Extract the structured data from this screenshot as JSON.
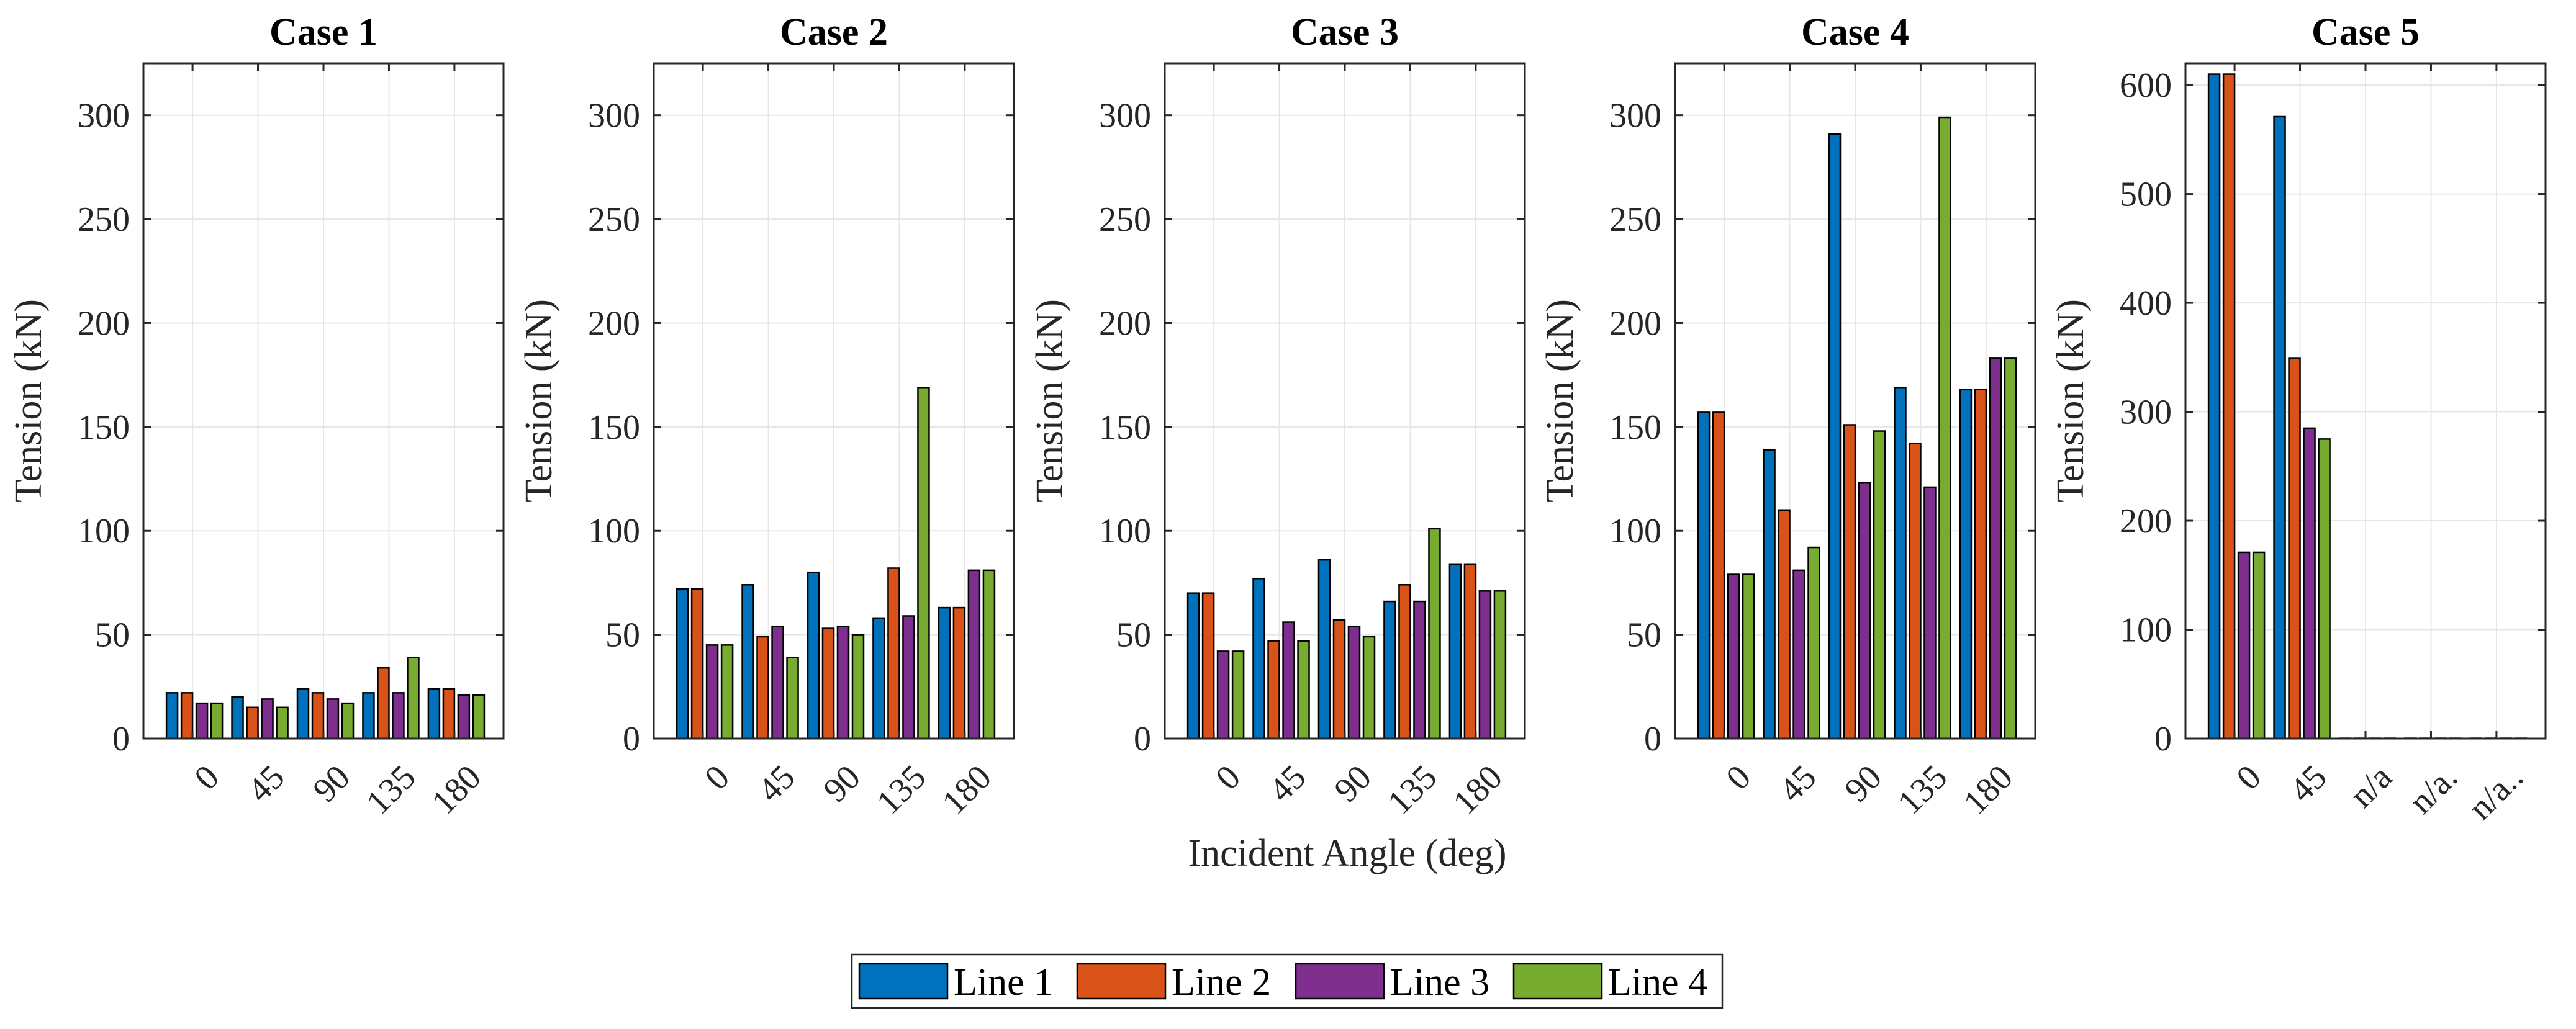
{
  "chart_data": {
    "type": "bar",
    "xlabel": "Incident Angle (deg)",
    "legend_location": "bottom-center",
    "series_names": [
      "Line 1",
      "Line 2",
      "Line 3",
      "Line 4"
    ],
    "colors": {
      "Line 1": "#0072BD",
      "Line 2": "#D95319",
      "Line 3": "#7E2F8E",
      "Line 4": "#77AC30"
    },
    "subplots": [
      {
        "title": "Case 1",
        "ylabel": "Tension (kN)",
        "ylim": [
          0,
          325
        ],
        "yticks": [
          0,
          50,
          100,
          150,
          200,
          250,
          300
        ],
        "grid": true,
        "categories": [
          "0",
          "45",
          "90",
          "135",
          "180"
        ],
        "series": [
          {
            "name": "Line 1",
            "values": [
              22,
              20,
              24,
              22,
              24
            ]
          },
          {
            "name": "Line 2",
            "values": [
              22,
              15,
              22,
              34,
              24
            ]
          },
          {
            "name": "Line 3",
            "values": [
              17,
              19,
              19,
              22,
              21
            ]
          },
          {
            "name": "Line 4",
            "values": [
              17,
              15,
              17,
              39,
              21
            ]
          }
        ]
      },
      {
        "title": "Case 2",
        "ylabel": "Tension (kN)",
        "ylim": [
          0,
          325
        ],
        "yticks": [
          0,
          50,
          100,
          150,
          200,
          250,
          300
        ],
        "grid": true,
        "categories": [
          "0",
          "45",
          "90",
          "135",
          "180"
        ],
        "series": [
          {
            "name": "Line 1",
            "values": [
              72,
              74,
              80,
              58,
              63
            ]
          },
          {
            "name": "Line 2",
            "values": [
              72,
              49,
              53,
              82,
              63
            ]
          },
          {
            "name": "Line 3",
            "values": [
              45,
              54,
              54,
              59,
              81
            ]
          },
          {
            "name": "Line 4",
            "values": [
              45,
              39,
              50,
              169,
              81
            ]
          }
        ]
      },
      {
        "title": "Case 3",
        "ylabel": "Tension (kN)",
        "ylim": [
          0,
          325
        ],
        "yticks": [
          0,
          50,
          100,
          150,
          200,
          250,
          300
        ],
        "grid": true,
        "categories": [
          "0",
          "45",
          "90",
          "135",
          "180"
        ],
        "series": [
          {
            "name": "Line 1",
            "values": [
              70,
              77,
              86,
              66,
              84
            ]
          },
          {
            "name": "Line 2",
            "values": [
              70,
              47,
              57,
              74,
              84
            ]
          },
          {
            "name": "Line 3",
            "values": [
              42,
              56,
              54,
              66,
              71
            ]
          },
          {
            "name": "Line 4",
            "values": [
              42,
              47,
              49,
              101,
              71
            ]
          }
        ]
      },
      {
        "title": "Case 4",
        "ylabel": "Tension (kN)",
        "ylim": [
          0,
          325
        ],
        "yticks": [
          0,
          50,
          100,
          150,
          200,
          250,
          300
        ],
        "grid": true,
        "categories": [
          "0",
          "45",
          "90",
          "135",
          "180"
        ],
        "series": [
          {
            "name": "Line 1",
            "values": [
              157,
              139,
              291,
              169,
              168
            ]
          },
          {
            "name": "Line 2",
            "values": [
              157,
              110,
              151,
              142,
              168
            ]
          },
          {
            "name": "Line 3",
            "values": [
              79,
              81,
              123,
              121,
              183
            ]
          },
          {
            "name": "Line 4",
            "values": [
              79,
              92,
              148,
              299,
              183
            ]
          }
        ]
      },
      {
        "title": "Case 5",
        "ylabel": "Tension (kN)",
        "ylim": [
          0,
          620
        ],
        "yticks": [
          0,
          100,
          200,
          300,
          400,
          500,
          600
        ],
        "grid": true,
        "categories": [
          "0",
          "45",
          "n/a",
          "n/a.",
          "n/a.."
        ],
        "series": [
          {
            "name": "Line 1",
            "values": [
              610,
              571,
              0,
              0,
              0
            ]
          },
          {
            "name": "Line 2",
            "values": [
              610,
              349,
              0,
              0,
              0
            ]
          },
          {
            "name": "Line 3",
            "values": [
              171,
              285,
              0,
              0,
              0
            ]
          },
          {
            "name": "Line 4",
            "values": [
              171,
              275,
              0,
              0,
              0
            ]
          }
        ]
      }
    ]
  }
}
